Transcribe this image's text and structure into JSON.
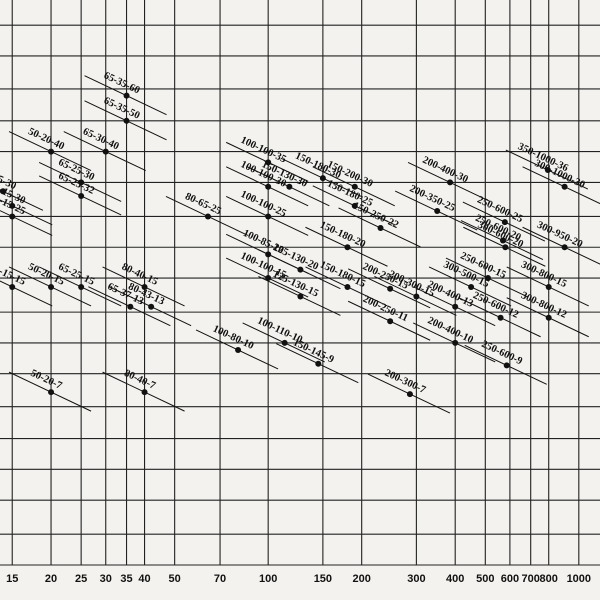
{
  "chart_data": {
    "type": "scatter",
    "x_scale": "log",
    "y_scale": "log",
    "grid": true,
    "color": "#111111",
    "xlim": [
      13.7,
      1170
    ],
    "ylim": [
      2,
      120
    ],
    "xticks": [
      15,
      20,
      25,
      30,
      35,
      40,
      50,
      70,
      100,
      150,
      200,
      300,
      400,
      500,
      600,
      700,
      800,
      1000
    ],
    "yticks": [
      2.5,
      3.2,
      4,
      5,
      6.3,
      8,
      10,
      12.5,
      16,
      20,
      25,
      32,
      40,
      50,
      63,
      80,
      100
    ],
    "labels": [
      "65-35-60",
      "65-35-50",
      "65-30-40",
      "50-20-40",
      "65-25-30",
      "65-25-32",
      "50-15-30",
      "40-15-30",
      "40-15-25",
      "65-25-15",
      "50-20-15",
      "40-15-15",
      "65-37-13",
      "80-40-15",
      "80-43-13",
      "50-20-7",
      "80-40-7",
      "80-65-25",
      "100-100-35",
      "100-100-30",
      "150-130-30",
      "100-100-25",
      "100-85-20",
      "125-130-20",
      "100-100-15",
      "125-130-15",
      "150-180-30",
      "150-180-25",
      "150-200-30",
      "150-250-22",
      "150-180-20",
      "150-180-15",
      "200-250-15",
      "200-300-15",
      "100-110-10",
      "100-80-10",
      "150-145-9",
      "200-250-11",
      "200-300-7",
      "200-400-30",
      "200-350-25",
      "250-600-25",
      "250-600-20",
      "300-600-20",
      "300-950-20",
      "350-1000-36",
      "300-1000-30",
      "250-600-15",
      "300-500-15",
      "200-400-13",
      "200-400-10",
      "250-600-12",
      "250-600-9",
      "300-800-15",
      "300-800-12"
    ],
    "x": [
      35,
      35,
      30,
      20,
      25,
      25,
      15,
      14,
      15,
      25,
      20,
      15,
      36,
      40,
      42,
      20,
      40,
      64,
      100,
      100,
      117,
      100,
      100,
      127,
      100,
      127,
      150,
      190,
      190,
      230,
      180,
      180,
      247,
      300,
      113,
      80,
      145,
      247,
      286,
      385,
      350,
      578,
      570,
      580,
      900,
      795,
      900,
      510,
      450,
      400,
      400,
      560,
      586,
      800,
      800
    ],
    "values": [
      60,
      50,
      40,
      40,
      32,
      29,
      27,
      30,
      25,
      15,
      15,
      15,
      13,
      15,
      13,
      7,
      7,
      25,
      37,
      31,
      31,
      25,
      19,
      17,
      16,
      14,
      33,
      27,
      31,
      23,
      20,
      15,
      14.8,
      14,
      10,
      9.5,
      8.6,
      11.7,
      6.9,
      32,
      26,
      24,
      21,
      20,
      20,
      35,
      31,
      16,
      15,
      13,
      10,
      12,
      8.5,
      15,
      12
    ]
  }
}
